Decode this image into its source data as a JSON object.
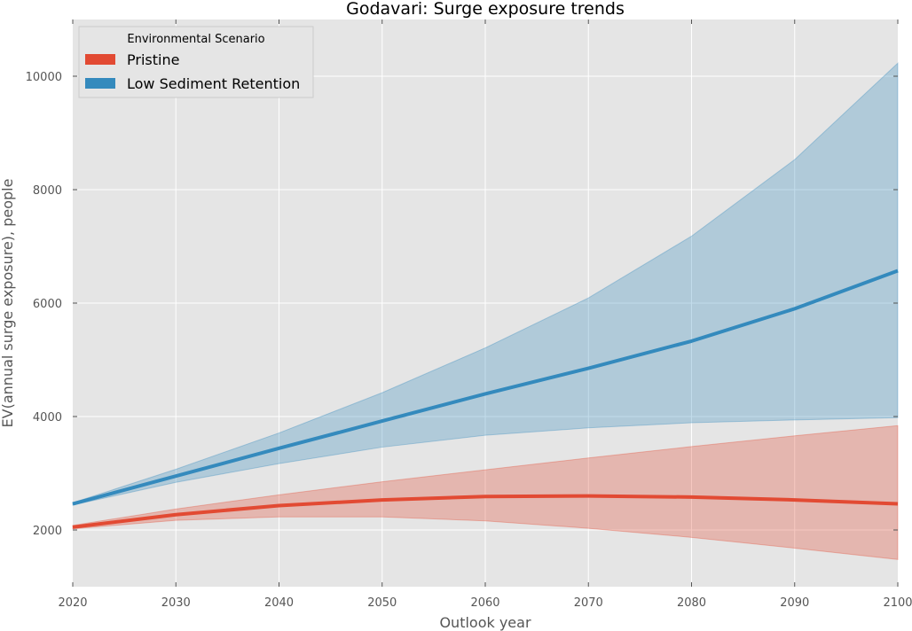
{
  "chart_data": {
    "type": "line",
    "title": "Godavari: Surge exposure trends",
    "xlabel": "Outlook year",
    "ylabel": "EV(annual surge exposure), people",
    "x": [
      2020,
      2030,
      2040,
      2050,
      2060,
      2070,
      2080,
      2090,
      2100
    ],
    "xlim": [
      2020,
      2100
    ],
    "ylim": [
      1000,
      11000
    ],
    "xticks": [
      "2020",
      "2030",
      "2040",
      "2050",
      "2060",
      "2070",
      "2080",
      "2090",
      "2100"
    ],
    "yticks": [
      "2000",
      "4000",
      "6000",
      "8000",
      "10000"
    ],
    "grid": true,
    "legend": {
      "title": "Environmental Scenario",
      "position": "top-left"
    },
    "series": [
      {
        "name": "Pristine",
        "color": "#e24a33",
        "values": [
          2050,
          2270,
          2430,
          2530,
          2590,
          2600,
          2580,
          2530,
          2460
        ],
        "lower": [
          2020,
          2170,
          2230,
          2230,
          2160,
          2030,
          1870,
          1680,
          1480
        ],
        "upper": [
          2080,
          2370,
          2620,
          2850,
          3060,
          3270,
          3470,
          3660,
          3840
        ]
      },
      {
        "name": "Low Sediment Retention",
        "color": "#348abd",
        "values": [
          2460,
          2950,
          3440,
          3920,
          4400,
          4850,
          5330,
          5900,
          6570
        ],
        "lower": [
          2440,
          2840,
          3170,
          3460,
          3670,
          3800,
          3890,
          3940,
          3980
        ],
        "upper": [
          2480,
          3070,
          3710,
          4420,
          5210,
          6090,
          7180,
          8530,
          10230
        ]
      }
    ]
  }
}
